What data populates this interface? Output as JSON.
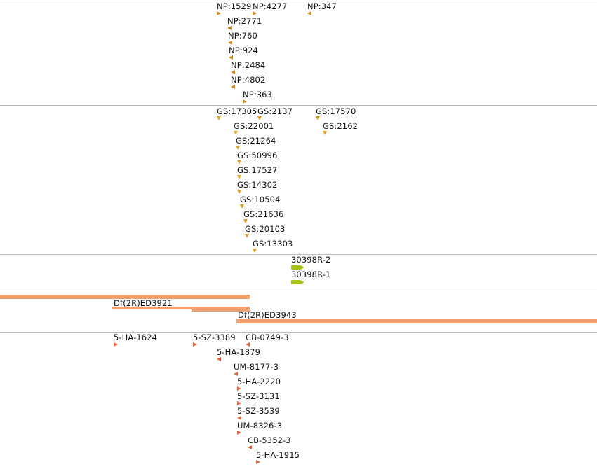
{
  "colors": {
    "np": "#c98a1a",
    "gs": "#e0a020",
    "gene": "#a8c21a",
    "deficiency": "#f0a070",
    "insertion": "#e8643c",
    "separator": "#bcbcbc"
  },
  "tracks": {
    "np": {
      "features": [
        {
          "label": "NP:1529",
          "marker": "right"
        },
        {
          "label": "NP:4277",
          "marker": "right"
        },
        {
          "label": "NP:347",
          "marker": "left"
        },
        {
          "label": "NP:2771",
          "marker": "left"
        },
        {
          "label": "NP:760",
          "marker": "left"
        },
        {
          "label": "NP:924",
          "marker": "left"
        },
        {
          "label": "NP:2484",
          "marker": "left"
        },
        {
          "label": "NP:4802",
          "marker": "left"
        },
        {
          "label": "NP:363",
          "marker": "right"
        }
      ]
    },
    "gs": {
      "features": [
        {
          "label": "GS:17305",
          "marker": "down"
        },
        {
          "label": "GS:2137",
          "marker": "down"
        },
        {
          "label": "GS:17570",
          "marker": "down"
        },
        {
          "label": "GS:22001",
          "marker": "down"
        },
        {
          "label": "GS:2162",
          "marker": "down"
        },
        {
          "label": "GS:21264",
          "marker": "down"
        },
        {
          "label": "GS:50996",
          "marker": "down"
        },
        {
          "label": "GS:17527",
          "marker": "down"
        },
        {
          "label": "GS:14302",
          "marker": "down"
        },
        {
          "label": "GS:10504",
          "marker": "down"
        },
        {
          "label": "GS:21636",
          "marker": "down"
        },
        {
          "label": "GS:20103",
          "marker": "down"
        },
        {
          "label": "GS:13303",
          "marker": "down"
        }
      ]
    },
    "genes": {
      "features": [
        {
          "label": "30398R-2"
        },
        {
          "label": "30398R-1"
        }
      ]
    },
    "deficiencies": {
      "features": [
        {
          "label": "Df(2R)ED3921"
        },
        {
          "label": "Df(2R)ED3943"
        }
      ]
    },
    "insertions": {
      "features": [
        {
          "label": "5-HA-1624",
          "marker": "right"
        },
        {
          "label": "5-SZ-3389",
          "marker": "right"
        },
        {
          "label": "CB-0749-3",
          "marker": "left"
        },
        {
          "label": "5-HA-1879",
          "marker": "left"
        },
        {
          "label": "UM-8177-3",
          "marker": "left"
        },
        {
          "label": "5-HA-2220",
          "marker": "right"
        },
        {
          "label": "5-SZ-3131",
          "marker": "right"
        },
        {
          "label": "5-SZ-3539",
          "marker": "left"
        },
        {
          "label": "UM-8326-3",
          "marker": "right"
        },
        {
          "label": "CB-5352-3",
          "marker": "left"
        },
        {
          "label": "5-HA-1915",
          "marker": "right"
        }
      ]
    }
  }
}
